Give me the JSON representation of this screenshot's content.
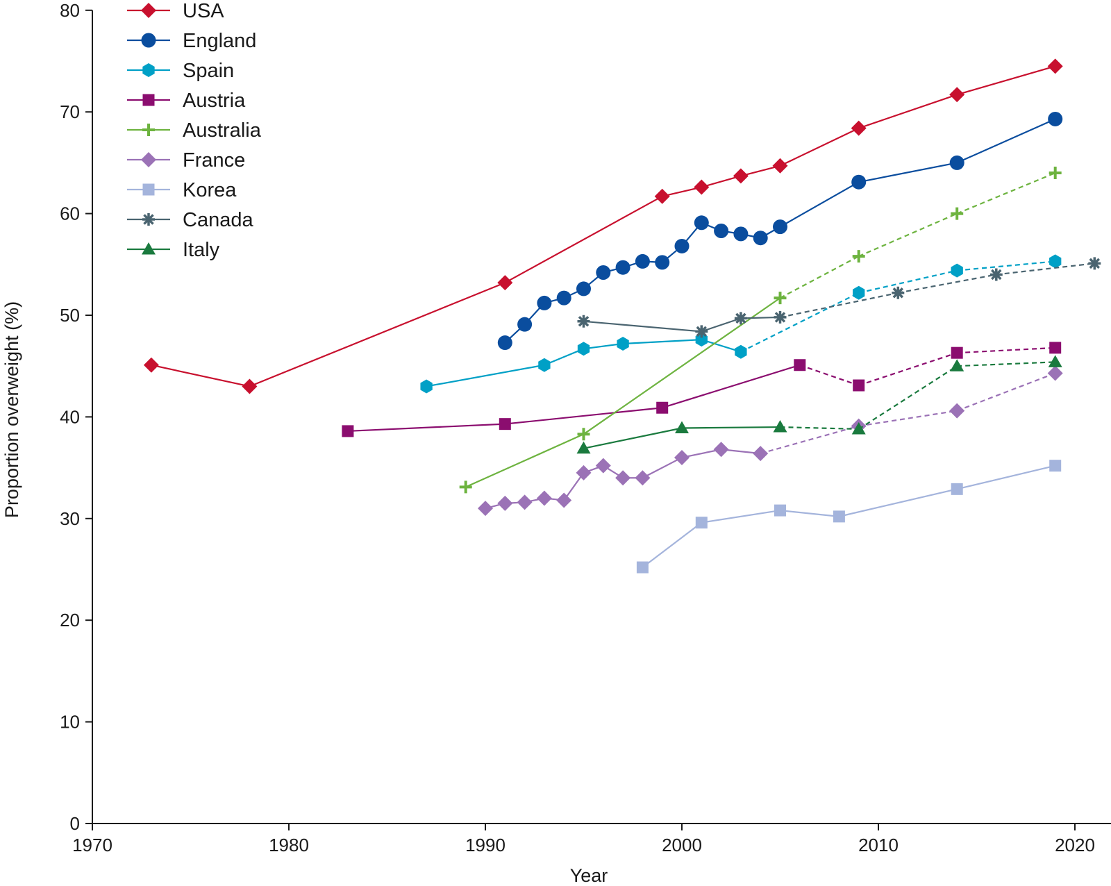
{
  "chart_data": {
    "type": "line",
    "title": "",
    "xlabel": "Year",
    "ylabel": "Proportion overweight (%)",
    "xlim": [
      1970,
      2022
    ],
    "ylim": [
      0,
      80
    ],
    "x_ticks": [
      1970,
      1980,
      1990,
      2000,
      2010,
      2020
    ],
    "y_ticks": [
      0,
      10,
      20,
      30,
      40,
      50,
      60,
      70,
      80
    ],
    "grid": false,
    "legend_position": "top-left",
    "series": [
      {
        "name": "USA",
        "color": "#C8102E",
        "marker": "diamond",
        "points": [
          [
            1973,
            45.1
          ],
          [
            1978,
            43.0
          ],
          [
            1991,
            53.2
          ],
          [
            1999,
            61.7
          ],
          [
            2001,
            62.6
          ],
          [
            2003,
            63.7
          ],
          [
            2005,
            64.7
          ],
          [
            2009,
            68.4
          ],
          [
            2014,
            71.7
          ],
          [
            2019,
            74.5
          ]
        ],
        "solid_until": 2019
      },
      {
        "name": "England",
        "color": "#0A4D9E",
        "marker": "circle",
        "points": [
          [
            1991,
            47.3
          ],
          [
            1992,
            49.1
          ],
          [
            1993,
            51.2
          ],
          [
            1994,
            51.7
          ],
          [
            1995,
            52.6
          ],
          [
            1996,
            54.2
          ],
          [
            1997,
            54.7
          ],
          [
            1998,
            55.3
          ],
          [
            1999,
            55.2
          ],
          [
            2000,
            56.8
          ],
          [
            2001,
            59.1
          ],
          [
            2002,
            58.3
          ],
          [
            2003,
            58.0
          ],
          [
            2004,
            57.6
          ],
          [
            2005,
            58.7
          ],
          [
            2009,
            63.1
          ],
          [
            2014,
            65.0
          ],
          [
            2019,
            69.3
          ]
        ],
        "solid_until": 2019
      },
      {
        "name": "Spain",
        "color": "#00A0C6",
        "marker": "hexagon",
        "points": [
          [
            1987,
            43.0
          ],
          [
            1993,
            45.1
          ],
          [
            1995,
            46.7
          ],
          [
            1997,
            47.2
          ],
          [
            2001,
            47.6
          ],
          [
            2003,
            46.4
          ],
          [
            2009,
            52.2
          ],
          [
            2014,
            54.4
          ],
          [
            2019,
            55.3
          ]
        ],
        "solid_until": 2003
      },
      {
        "name": "Austria",
        "color": "#8B0D6F",
        "marker": "square",
        "points": [
          [
            1983,
            38.6
          ],
          [
            1991,
            39.3
          ],
          [
            1999,
            40.9
          ],
          [
            2006,
            45.1
          ],
          [
            2009,
            43.1
          ],
          [
            2014,
            46.3
          ],
          [
            2019,
            46.8
          ]
        ],
        "solid_until": 2006
      },
      {
        "name": "Australia",
        "color": "#6DB33F",
        "marker": "plus",
        "points": [
          [
            1989,
            33.1
          ],
          [
            1995,
            38.3
          ],
          [
            2005,
            51.7
          ],
          [
            2009,
            55.8
          ],
          [
            2014,
            60.0
          ],
          [
            2019,
            64.0
          ]
        ],
        "solid_until": 2005
      },
      {
        "name": "France",
        "color": "#9B72B6",
        "marker": "diamond",
        "points": [
          [
            1990,
            31.0
          ],
          [
            1991,
            31.5
          ],
          [
            1992,
            31.6
          ],
          [
            1993,
            32.0
          ],
          [
            1994,
            31.8
          ],
          [
            1995,
            34.5
          ],
          [
            1996,
            35.2
          ],
          [
            1997,
            34.0
          ],
          [
            1998,
            34.0
          ],
          [
            2000,
            36.0
          ],
          [
            2002,
            36.8
          ],
          [
            2004,
            36.4
          ],
          [
            2009,
            39.1
          ],
          [
            2014,
            40.6
          ],
          [
            2019,
            44.3
          ]
        ],
        "solid_until": 2004
      },
      {
        "name": "Korea",
        "color": "#A4B4DC",
        "marker": "square",
        "points": [
          [
            1998,
            25.2
          ],
          [
            2001,
            29.6
          ],
          [
            2005,
            30.8
          ],
          [
            2008,
            30.2
          ],
          [
            2014,
            32.9
          ],
          [
            2019,
            35.2
          ]
        ],
        "solid_until": 2019
      },
      {
        "name": "Canada",
        "color": "#4A6470",
        "marker": "star",
        "points": [
          [
            1995,
            49.4
          ],
          [
            2001,
            48.4
          ],
          [
            2003,
            49.7
          ],
          [
            2005,
            49.8
          ],
          [
            2011,
            52.2
          ],
          [
            2016,
            54.0
          ],
          [
            2021,
            55.1
          ]
        ],
        "solid_until": 2005
      },
      {
        "name": "Italy",
        "color": "#1A7A3E",
        "marker": "triangle",
        "points": [
          [
            1995,
            36.9
          ],
          [
            2000,
            38.9
          ],
          [
            2005,
            39.0
          ],
          [
            2009,
            38.8
          ],
          [
            2014,
            45.0
          ],
          [
            2019,
            45.4
          ]
        ],
        "solid_until": 2005
      }
    ]
  }
}
